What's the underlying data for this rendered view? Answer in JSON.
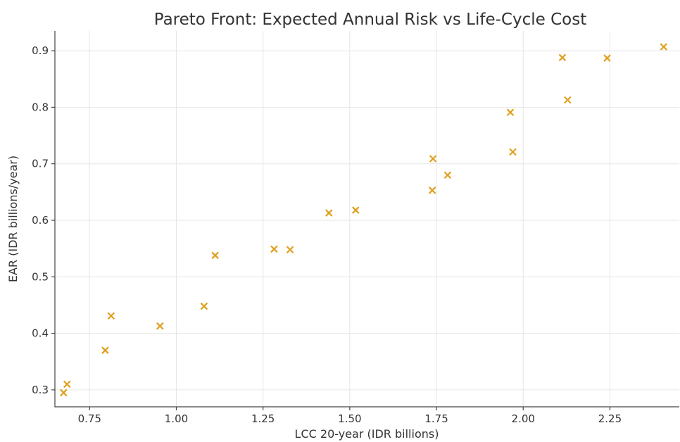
{
  "chart_data": {
    "type": "scatter",
    "title": "Pareto Front: Expected Annual Risk vs Life-Cycle Cost",
    "xlabel": "LCC 20-year (IDR billions)",
    "ylabel": "EAR (IDR billions/year)",
    "xlim": [
      0.65,
      2.45
    ],
    "ylim": [
      0.27,
      0.935
    ],
    "xticks": [
      0.75,
      1.0,
      1.25,
      1.5,
      1.75,
      2.0,
      2.25
    ],
    "xtick_labels": [
      "0.75",
      "1.00",
      "1.25",
      "1.50",
      "1.75",
      "2.00",
      "2.25"
    ],
    "yticks": [
      0.3,
      0.4,
      0.5,
      0.6,
      0.7,
      0.8,
      0.9
    ],
    "ytick_labels": [
      "0.3",
      "0.4",
      "0.5",
      "0.6",
      "0.7",
      "0.8",
      "0.9"
    ],
    "grid": true,
    "marker": "x",
    "color": "#e0a01c",
    "series": [
      {
        "name": "",
        "points": [
          {
            "x": 0.675,
            "y": 0.295
          },
          {
            "x": 0.685,
            "y": 0.31
          },
          {
            "x": 0.795,
            "y": 0.37
          },
          {
            "x": 0.812,
            "y": 0.431
          },
          {
            "x": 0.953,
            "y": 0.413
          },
          {
            "x": 1.08,
            "y": 0.448
          },
          {
            "x": 1.112,
            "y": 0.538
          },
          {
            "x": 1.282,
            "y": 0.549
          },
          {
            "x": 1.328,
            "y": 0.548
          },
          {
            "x": 1.44,
            "y": 0.613
          },
          {
            "x": 1.517,
            "y": 0.618
          },
          {
            "x": 1.738,
            "y": 0.653
          },
          {
            "x": 1.74,
            "y": 0.709
          },
          {
            "x": 1.782,
            "y": 0.68
          },
          {
            "x": 1.963,
            "y": 0.791
          },
          {
            "x": 1.97,
            "y": 0.721
          },
          {
            "x": 2.113,
            "y": 0.888
          },
          {
            "x": 2.128,
            "y": 0.813
          },
          {
            "x": 2.242,
            "y": 0.887
          },
          {
            "x": 2.405,
            "y": 0.907
          }
        ]
      }
    ]
  }
}
